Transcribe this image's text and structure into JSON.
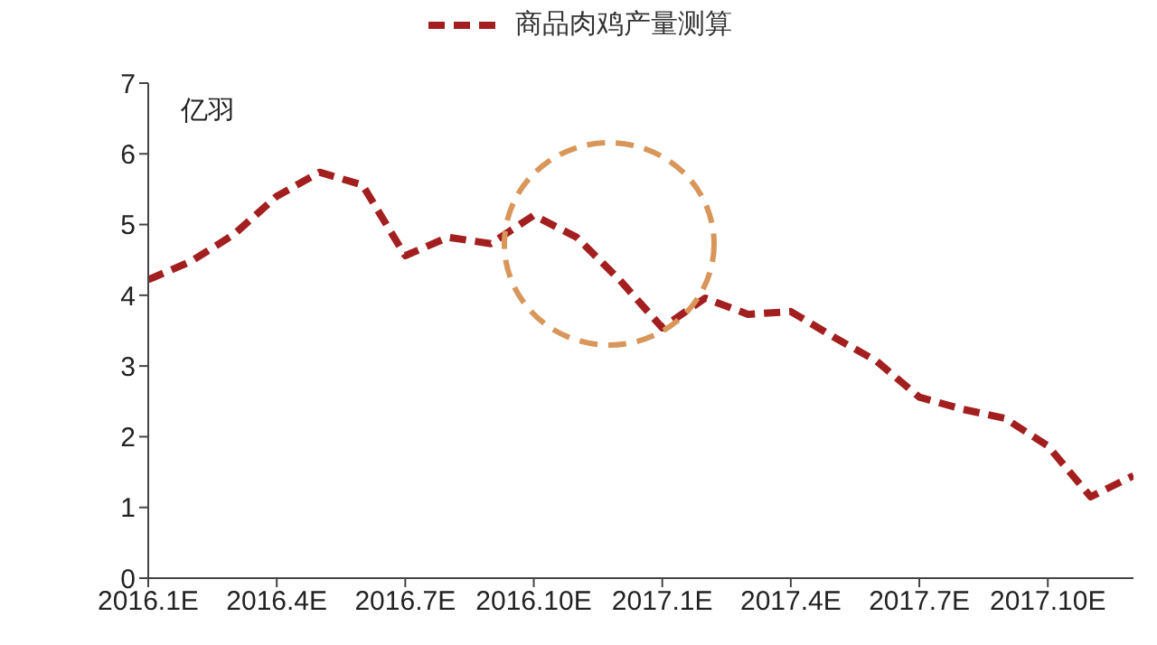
{
  "chart_data": {
    "type": "line",
    "ylabel": "亿羽",
    "categories": [
      "2016.1E",
      null,
      null,
      "2016.4E",
      null,
      null,
      "2016.7E",
      null,
      null,
      "2016.10E",
      null,
      null,
      "2017.1E",
      null,
      null,
      "2017.4E",
      null,
      null,
      "2017.7E",
      null,
      null,
      "2017.10E",
      null,
      null
    ],
    "series": [
      {
        "name": "商品肉鸡产量测算",
        "color": "#a31f1f",
        "values": [
          4.22,
          4.48,
          4.86,
          5.4,
          5.74,
          5.56,
          4.56,
          4.82,
          4.73,
          5.13,
          4.82,
          4.22,
          3.54,
          3.96,
          3.73,
          3.77,
          3.41,
          3.07,
          2.56,
          2.39,
          2.26,
          1.87,
          1.15,
          1.45
        ]
      }
    ],
    "ylim": [
      0,
      7
    ],
    "yticks": [
      0,
      1,
      2,
      3,
      4,
      5,
      6,
      7
    ],
    "grid": false,
    "legend": "top",
    "line_style": "dashed",
    "marker": "none"
  }
}
